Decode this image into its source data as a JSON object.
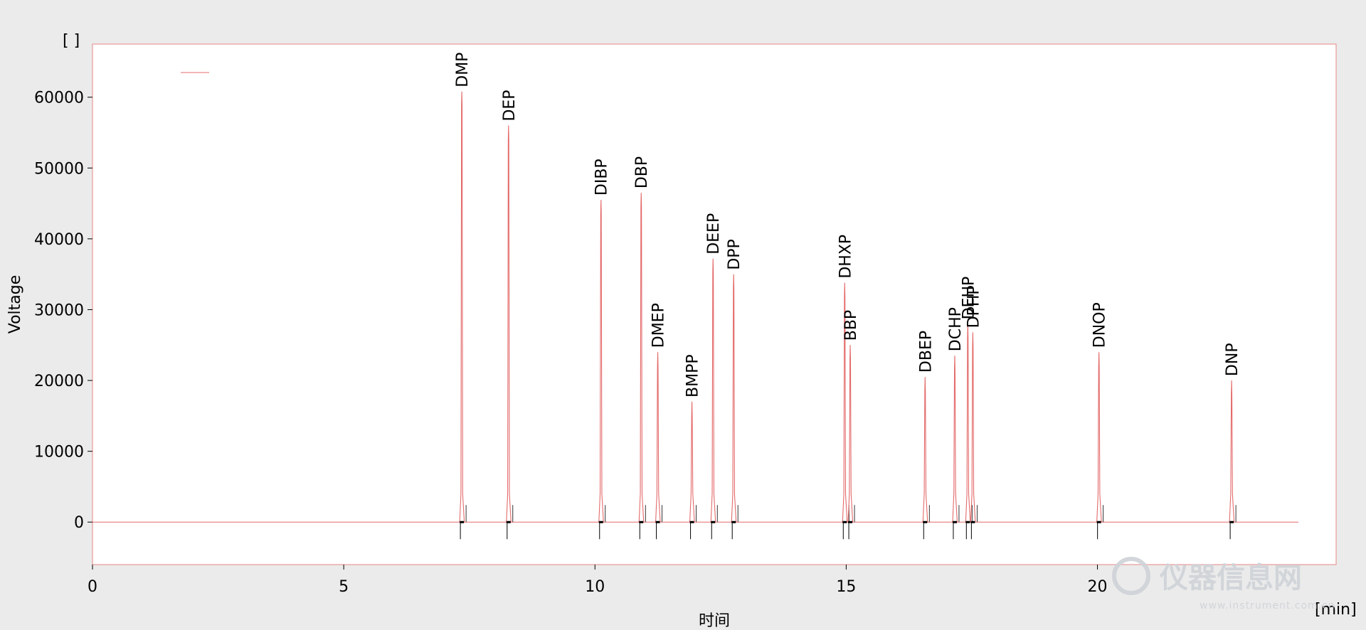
{
  "chart_data": {
    "type": "line",
    "title": "",
    "xlabel": "时间",
    "ylabel": "Voltage",
    "x_unit": "[min]",
    "y_unit": "[ ]",
    "xlim": [
      0,
      24.75
    ],
    "ylim": [
      -6000,
      67500
    ],
    "xticks": [
      0,
      5,
      10,
      15,
      20
    ],
    "yticks": [
      0,
      10000,
      20000,
      30000,
      40000,
      50000,
      60000
    ],
    "grid": false,
    "baseline_end_min": 24.0,
    "colors": {
      "trace": "#e46a6a",
      "frame": "#e89a9a",
      "zero_line": "#e46a6a",
      "marker": "#000000"
    },
    "series": [
      {
        "peaks": [
          {
            "label": "DMP",
            "rt": 7.35,
            "height": 60800
          },
          {
            "label": "DEP",
            "rt": 8.28,
            "height": 56000
          },
          {
            "label": "DIBP",
            "rt": 10.12,
            "height": 45500
          },
          {
            "label": "DBP",
            "rt": 10.92,
            "height": 46500
          },
          {
            "label": "DMEP",
            "rt": 11.25,
            "height": 24000
          },
          {
            "label": "BMPP",
            "rt": 11.93,
            "height": 17000
          },
          {
            "label": "DEEP",
            "rt": 12.35,
            "height": 37200
          },
          {
            "label": "DPP",
            "rt": 12.76,
            "height": 35000
          },
          {
            "label": "DHXP",
            "rt": 14.97,
            "height": 33800
          },
          {
            "label": "BBP",
            "rt": 15.08,
            "height": 25000
          },
          {
            "label": "DBEP",
            "rt": 16.57,
            "height": 20500
          },
          {
            "label": "DCHP",
            "rt": 17.16,
            "height": 23500
          },
          {
            "label": "DEHP",
            "rt": 17.42,
            "height": 28000
          },
          {
            "label": "DPHP",
            "rt": 17.52,
            "height": 26800
          },
          {
            "label": "DNOP",
            "rt": 20.03,
            "height": 24000
          },
          {
            "label": "DNP",
            "rt": 22.67,
            "height": 20000
          }
        ]
      }
    ]
  },
  "watermark": {
    "text": "仪器信息网",
    "sub": "www.instrument.com.cn"
  }
}
